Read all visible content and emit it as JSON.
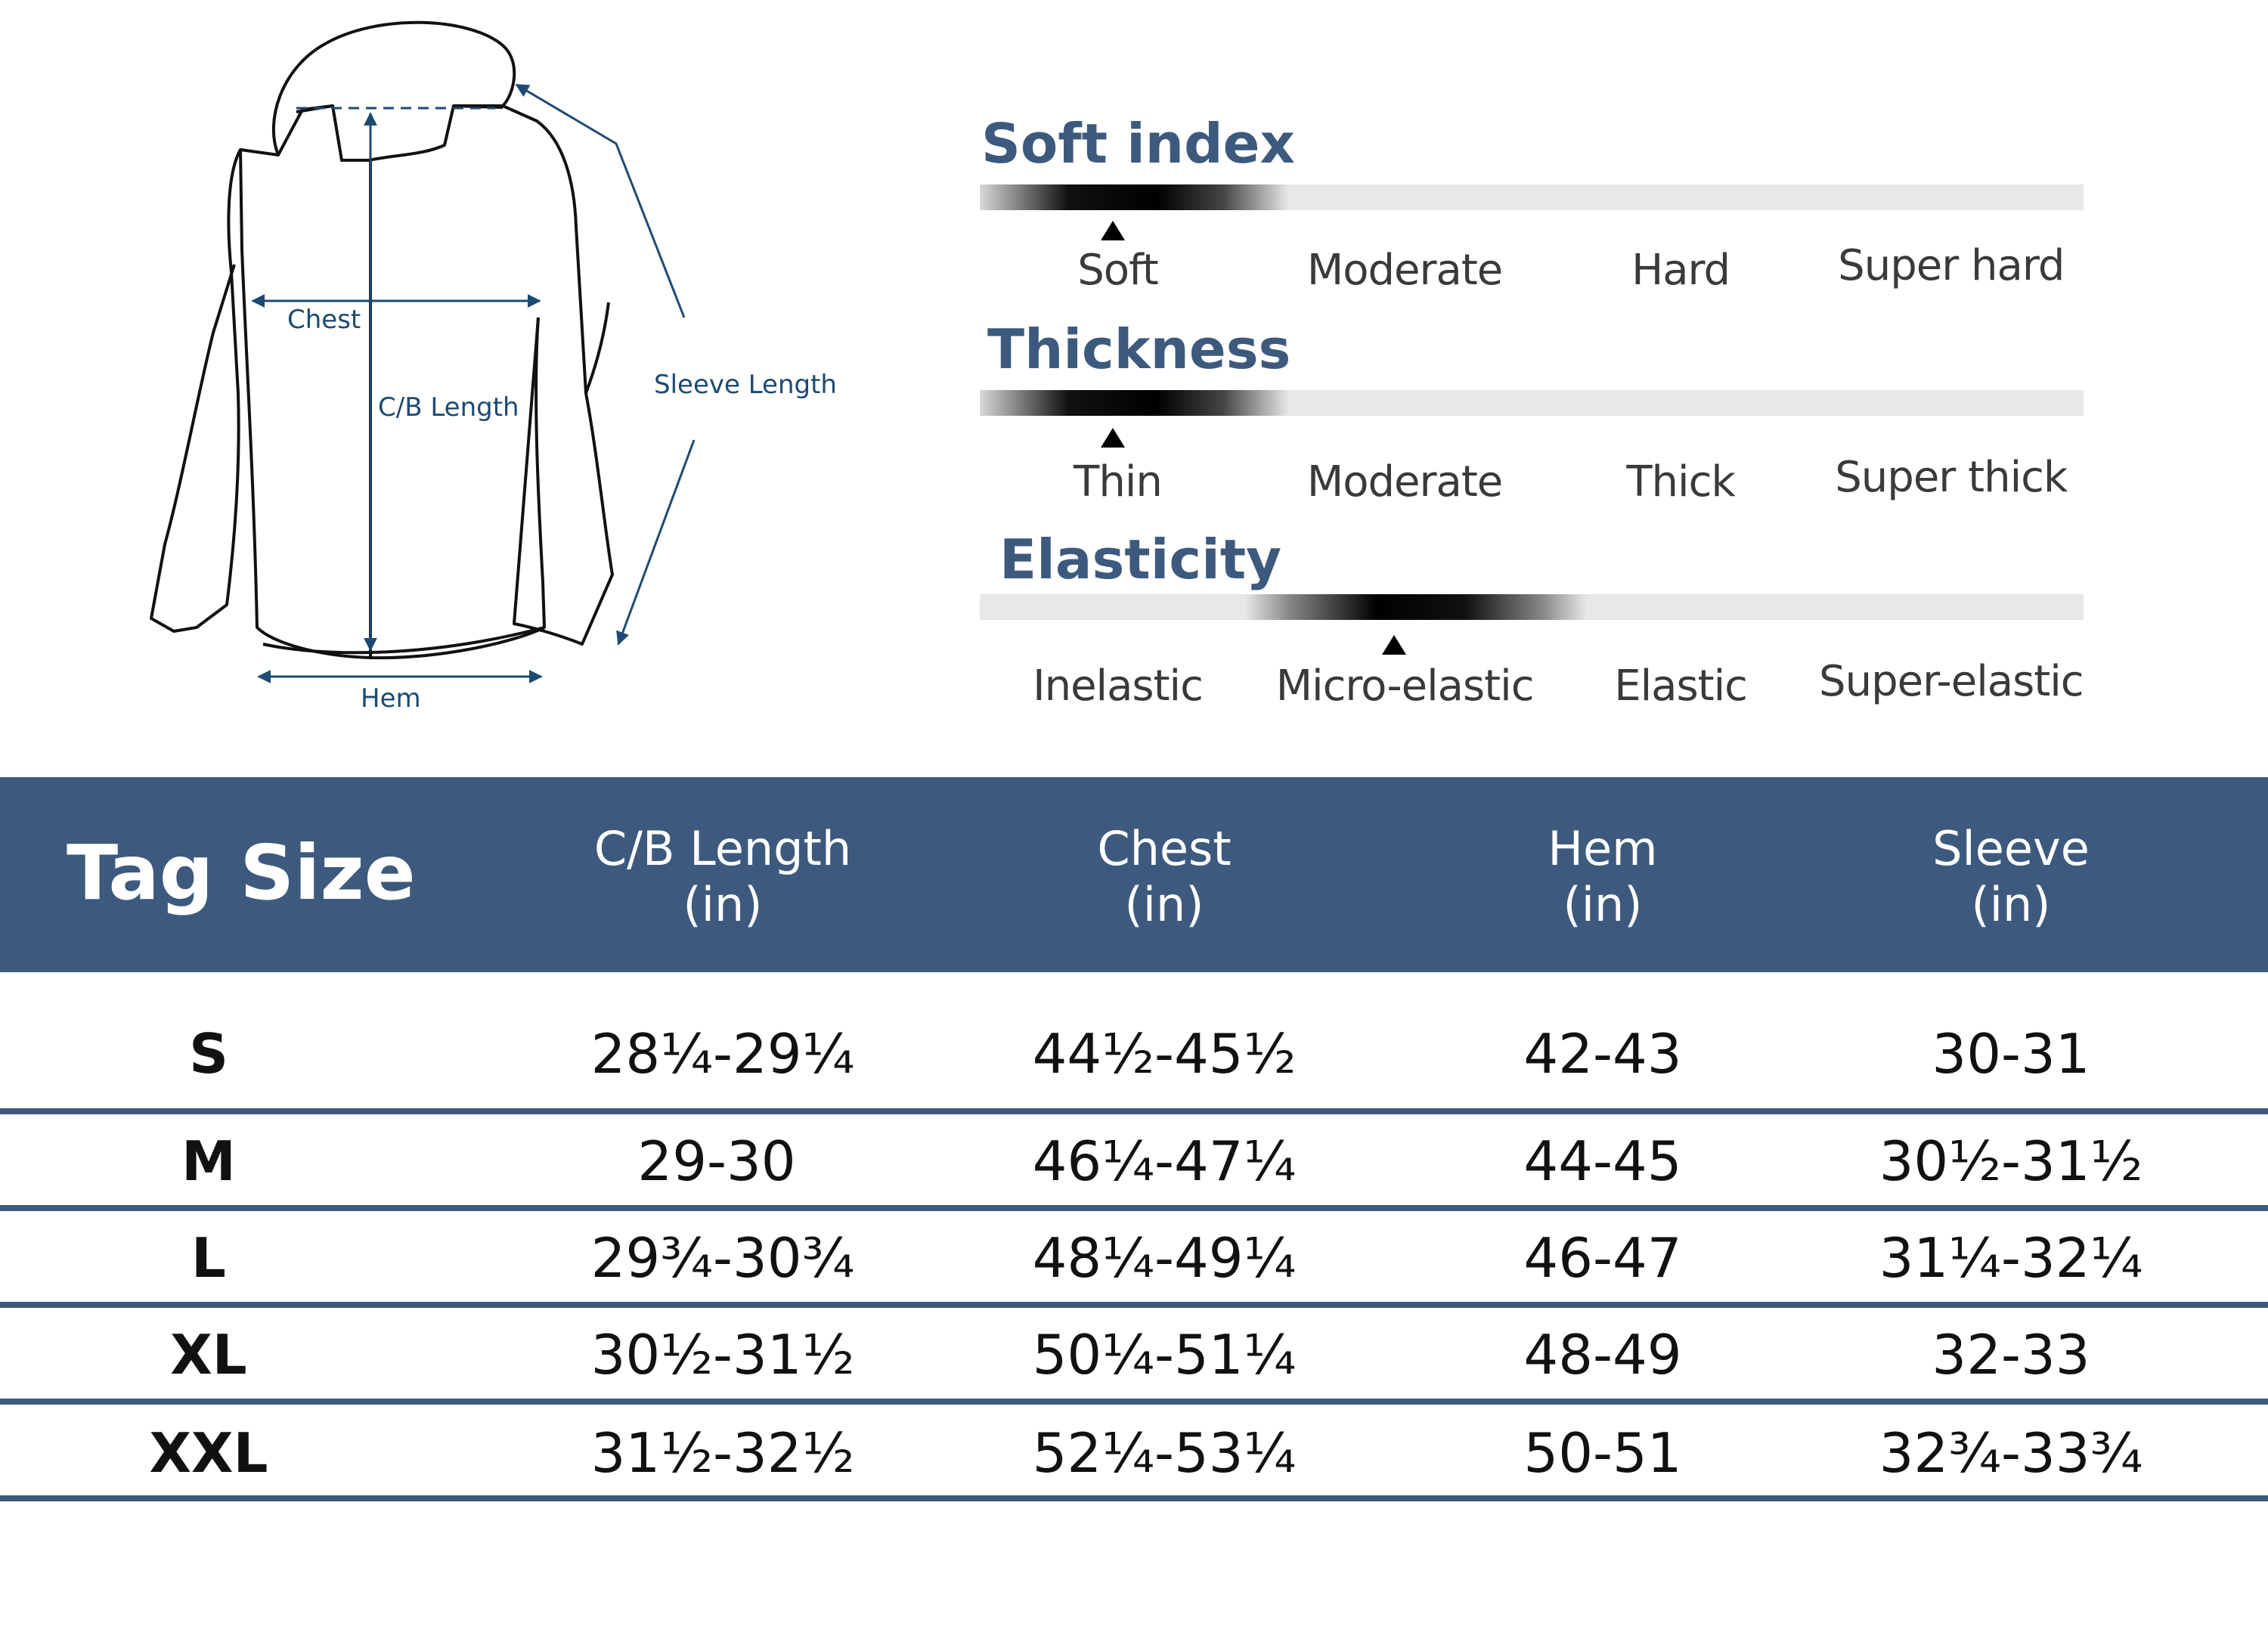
{
  "diagram": {
    "labels": {
      "chest": "Chest",
      "cb_length": "C/B Length",
      "sleeve_length": "Sleeve Length",
      "hem": "Hem"
    },
    "line_color": "#1d4a73"
  },
  "scales": [
    {
      "title": "Soft index",
      "options": [
        "Soft",
        "Moderate",
        "Hard",
        "Super hard"
      ],
      "selected": "Soft"
    },
    {
      "title": "Thickness",
      "options": [
        "Thin",
        "Moderate",
        "Thick",
        "Super thick"
      ],
      "selected": "Thin"
    },
    {
      "title": "Elasticity",
      "options": [
        "Inelastic",
        "Micro-elastic",
        "Elastic",
        "Super-elastic"
      ],
      "selected": "Micro-elastic"
    }
  ],
  "table": {
    "header_color": "#3d5a7e",
    "columns": [
      {
        "key": "size",
        "label": "Tag Size",
        "unit": ""
      },
      {
        "key": "cb_length",
        "label": "C/B Length",
        "unit": "(in)"
      },
      {
        "key": "chest",
        "label": "Chest",
        "unit": "(in)"
      },
      {
        "key": "hem",
        "label": "Hem",
        "unit": "(in)"
      },
      {
        "key": "sleeve",
        "label": "Sleeve",
        "unit": "(in)"
      }
    ],
    "rows": [
      {
        "size": "S",
        "cb_length": "28¼-29¼",
        "chest": "44½-45½",
        "hem": "42-43",
        "sleeve": "30-31"
      },
      {
        "size": "M",
        "cb_length": "29-30",
        "chest": "46¼-47¼",
        "hem": "44-45",
        "sleeve": "30½-31½"
      },
      {
        "size": "L",
        "cb_length": "29¾-30¾",
        "chest": "48¼-49¼",
        "hem": "46-47",
        "sleeve": "31¼-32¼"
      },
      {
        "size": "XL",
        "cb_length": "30½-31½",
        "chest": "50¼-51¼",
        "hem": "48-49",
        "sleeve": "32-33"
      },
      {
        "size": "XXL",
        "cb_length": "31½-32½",
        "chest": "52¼-53¼",
        "hem": "50-51",
        "sleeve": "32¾-33¾"
      }
    ]
  }
}
